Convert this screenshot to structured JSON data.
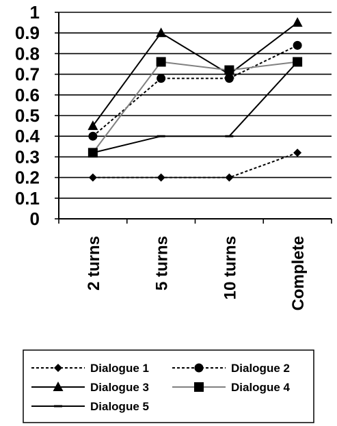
{
  "chart_data": {
    "type": "line",
    "categories": [
      "2 turns",
      "5 turns",
      "10 turns",
      "Complete"
    ],
    "y_ticks": [
      "0",
      "0.1",
      "0.2",
      "0.3",
      "0.4",
      "0.5",
      "0.6",
      "0.7",
      "0.8",
      "0.9",
      "1"
    ],
    "ylim": [
      0,
      1
    ],
    "grid": true,
    "legend_position": "bottom",
    "series": [
      {
        "name": "Dialogue 1",
        "values": [
          0.2,
          0.2,
          0.2,
          0.32
        ],
        "marker": "diamond",
        "line": "dotted",
        "color": "#000000"
      },
      {
        "name": "Dialogue 2",
        "values": [
          0.4,
          0.68,
          0.68,
          0.84
        ],
        "marker": "circle",
        "line": "dotted",
        "color": "#000000"
      },
      {
        "name": "Dialogue 3",
        "values": [
          0.45,
          0.9,
          0.7,
          0.95
        ],
        "marker": "triangle",
        "line": "solid",
        "color": "#000000"
      },
      {
        "name": "Dialogue 4",
        "values": [
          0.32,
          0.76,
          0.72,
          0.76
        ],
        "marker": "square",
        "line": "solid",
        "color": "#808080"
      },
      {
        "name": "Dialogue 5",
        "values": [
          0.32,
          0.4,
          0.4,
          0.76
        ],
        "marker": "dash",
        "line": "solid",
        "color": "#000000"
      }
    ]
  }
}
